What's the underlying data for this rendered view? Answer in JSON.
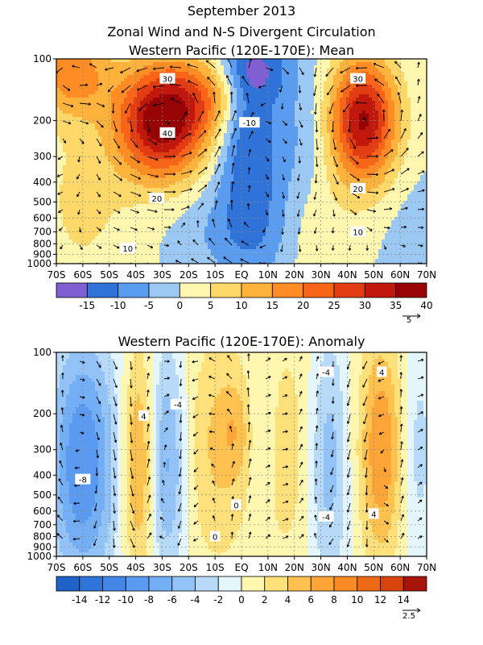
{
  "figure": {
    "title_line1": "September 2013",
    "title_line2": "Zonal Wind and N-S Divergent Circulation"
  },
  "chart_data": [
    {
      "type": "heatmap",
      "title": "Western Pacific (120E-170E): Mean",
      "x_tick_labels": [
        "70S",
        "60S",
        "50S",
        "40S",
        "30S",
        "20S",
        "10S",
        "EQ",
        "10N",
        "20N",
        "30N",
        "40N",
        "50N",
        "60N",
        "70N"
      ],
      "x_values": [
        -70,
        -60,
        -50,
        -40,
        -30,
        -20,
        -10,
        0,
        10,
        20,
        30,
        40,
        50,
        60,
        70
      ],
      "y_tick_labels": [
        "100",
        "200",
        "300",
        "400",
        "500",
        "600",
        "700",
        "800",
        "900",
        "1000"
      ],
      "y_values": [
        100,
        200,
        300,
        400,
        500,
        600,
        700,
        800,
        900,
        1000
      ],
      "y_scale": "log",
      "xlim": [
        -70,
        70
      ],
      "ylim": [
        1000,
        100
      ],
      "grid": true,
      "colorbar": {
        "labels": [
          "-15",
          "-10",
          "-5",
          "0",
          "5",
          "10",
          "15",
          "20",
          "25",
          "30",
          "35",
          "40"
        ],
        "levels": [
          -15,
          -10,
          -5,
          0,
          5,
          10,
          15,
          20,
          25,
          30,
          35,
          40
        ],
        "colors": [
          "#7f5fd2",
          "#2f72d8",
          "#5a9df0",
          "#9cc8f4",
          "#fff6b0",
          "#ffd86a",
          "#ffb23c",
          "#ff8c24",
          "#f86418",
          "#e23c12",
          "#c0180c",
          "#980406"
        ]
      },
      "vector_reference": "5",
      "contour_labels": [
        {
          "text": "30",
          "lat": -28,
          "p": 125
        },
        {
          "text": "40",
          "lat": -28,
          "p": 230
        },
        {
          "text": "-10",
          "lat": 3,
          "p": 205
        },
        {
          "text": "20",
          "lat": -32,
          "p": 480
        },
        {
          "text": "10",
          "lat": -43,
          "p": 840
        },
        {
          "text": "30",
          "lat": 44,
          "p": 125
        },
        {
          "text": "20",
          "lat": 44,
          "p": 430
        },
        {
          "text": "10",
          "lat": 44,
          "p": 700
        }
      ],
      "features": [
        {
          "lat": -30,
          "p": 200,
          "amp": 40,
          "sx": 12,
          "sy": 0.45
        },
        {
          "lat": 46,
          "p": 200,
          "amp": 36,
          "sx": 9,
          "sy": 0.5
        },
        {
          "lat": -64,
          "p": 115,
          "amp": 18,
          "sx": 10,
          "sy": 0.35
        },
        {
          "lat": -60,
          "p": 500,
          "amp": 6,
          "sx": 14,
          "sy": 0.8
        },
        {
          "lat": -12,
          "p": 150,
          "amp": 12,
          "sx": 10,
          "sy": 0.3
        },
        {
          "lat": -10,
          "p": 700,
          "amp": -4,
          "sx": 12,
          "sy": 0.4
        },
        {
          "lat": 2,
          "p": 220,
          "amp": -14,
          "sx": 8,
          "sy": 0.7
        },
        {
          "lat": 6,
          "p": 110,
          "amp": -10,
          "sx": 10,
          "sy": 0.25
        },
        {
          "lat": 6,
          "p": 700,
          "amp": -7,
          "sx": 10,
          "sy": 0.45
        },
        {
          "lat": 20,
          "p": 250,
          "amp": -5,
          "sx": 10,
          "sy": 0.6
        },
        {
          "lat": 28,
          "p": 700,
          "amp": 4,
          "sx": 10,
          "sy": 0.5
        },
        {
          "lat": 64,
          "p": 700,
          "amp": -2,
          "sx": 8,
          "sy": 0.5
        }
      ]
    },
    {
      "type": "heatmap",
      "title": "Western Pacific (120E-170E): Anomaly",
      "x_tick_labels": [
        "70S",
        "60S",
        "50S",
        "40S",
        "30S",
        "20S",
        "10S",
        "EQ",
        "10N",
        "20N",
        "30N",
        "40N",
        "50N",
        "60N",
        "70N"
      ],
      "x_values": [
        -70,
        -60,
        -50,
        -40,
        -30,
        -20,
        -10,
        0,
        10,
        20,
        30,
        40,
        50,
        60,
        70
      ],
      "y_tick_labels": [
        "100",
        "200",
        "300",
        "400",
        "500",
        "600",
        "700",
        "800",
        "900",
        "1000"
      ],
      "y_values": [
        100,
        200,
        300,
        400,
        500,
        600,
        700,
        800,
        900,
        1000
      ],
      "y_scale": "log",
      "xlim": [
        -70,
        70
      ],
      "ylim": [
        1000,
        100
      ],
      "grid": true,
      "colorbar": {
        "labels": [
          "-14",
          "-12",
          "-10",
          "-8",
          "-6",
          "-4",
          "-2",
          "0",
          "2",
          "4",
          "6",
          "8",
          "10",
          "12",
          "14"
        ],
        "levels": [
          -14,
          -12,
          -10,
          -8,
          -6,
          -4,
          -2,
          0,
          2,
          4,
          6,
          8,
          10,
          12,
          14
        ],
        "colors": [
          "#1f62c8",
          "#2f74d8",
          "#4386e4",
          "#5a9af0",
          "#74aef4",
          "#92c2f6",
          "#b6daf8",
          "#e4f6fa",
          "#fff6b0",
          "#ffe07a",
          "#ffc24e",
          "#ffa436",
          "#fd8a22",
          "#ef6a16",
          "#d8440e",
          "#a8140a"
        ]
      },
      "vector_reference": "2.5",
      "contour_labels": [
        {
          "text": "-4",
          "lat": -24,
          "p": 180
        },
        {
          "text": "4",
          "lat": -37,
          "p": 205
        },
        {
          "text": "-8",
          "lat": -60,
          "p": 420
        },
        {
          "text": "0",
          "lat": -2,
          "p": 560
        },
        {
          "text": "0",
          "lat": -10,
          "p": 800
        },
        {
          "text": "-4",
          "lat": 32,
          "p": 125
        },
        {
          "text": "4",
          "lat": 53,
          "p": 125
        },
        {
          "text": "-4",
          "lat": 32,
          "p": 640
        },
        {
          "text": "4",
          "lat": 50,
          "p": 620
        }
      ],
      "features": [
        {
          "lat": -60,
          "p": 350,
          "amp": -10,
          "sx": 9,
          "sy": 1.0
        },
        {
          "lat": -39,
          "p": 350,
          "amp": 7,
          "sx": 4.5,
          "sy": 0.9
        },
        {
          "lat": -28,
          "p": 350,
          "amp": -7,
          "sx": 5,
          "sy": 0.9
        },
        {
          "lat": -9,
          "p": 300,
          "amp": 4,
          "sx": 10,
          "sy": 1.0
        },
        {
          "lat": -2,
          "p": 240,
          "amp": 3,
          "sx": 5,
          "sy": 0.4
        },
        {
          "lat": 7,
          "p": 240,
          "amp": -2.5,
          "sx": 4,
          "sy": 0.6
        },
        {
          "lat": 17,
          "p": 300,
          "amp": 3,
          "sx": 7,
          "sy": 1.0
        },
        {
          "lat": 33,
          "p": 350,
          "amp": -5,
          "sx": 5,
          "sy": 1.0
        },
        {
          "lat": 53,
          "p": 300,
          "amp": 8,
          "sx": 6,
          "sy": 0.9
        },
        {
          "lat": 66,
          "p": 300,
          "amp": -3,
          "sx": 5,
          "sy": 0.9
        }
      ]
    }
  ]
}
